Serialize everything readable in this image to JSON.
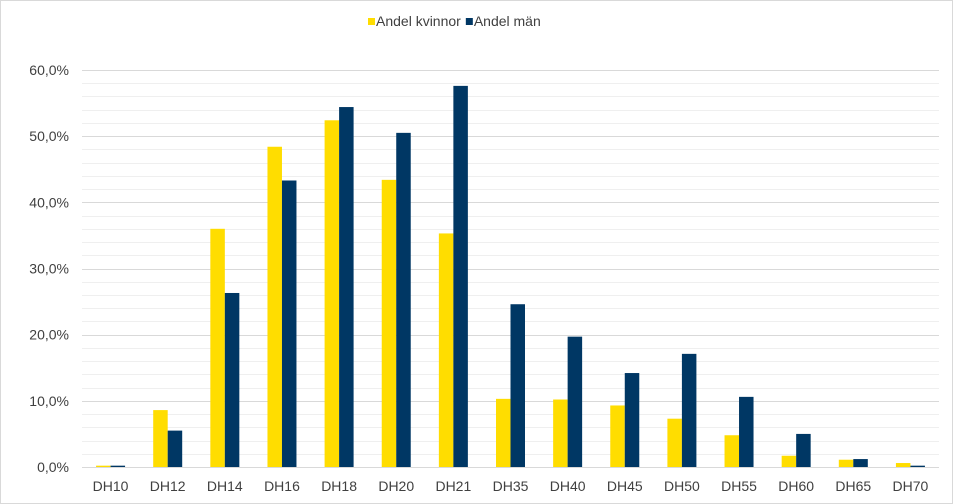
{
  "chart_data": {
    "type": "bar",
    "categories": [
      "DH10",
      "DH12",
      "DH14",
      "DH16",
      "DH18",
      "DH20",
      "DH21",
      "DH35",
      "DH40",
      "DH45",
      "DH50",
      "DH55",
      "DH60",
      "DH65",
      "DH70"
    ],
    "series": [
      {
        "name": "Andel kvinnor",
        "color": "#FFDD00",
        "values": [
          0.2,
          8.6,
          36.0,
          48.4,
          52.4,
          43.4,
          35.3,
          10.3,
          10.2,
          9.3,
          7.3,
          4.8,
          1.7,
          1.1,
          0.6
        ]
      },
      {
        "name": "Andel män",
        "color": "#003764",
        "values": [
          0.2,
          5.5,
          26.3,
          43.3,
          54.4,
          50.5,
          57.6,
          24.6,
          19.7,
          14.2,
          17.1,
          10.6,
          5.0,
          1.2,
          0.2
        ]
      }
    ],
    "y_ticks": [
      "0,0%",
      "10,0%",
      "20,0%",
      "30,0%",
      "40,0%",
      "50,0%",
      "60,0%"
    ],
    "ylim": [
      0,
      60
    ],
    "grid": "major and minor horizontal",
    "legend_position": "top"
  }
}
